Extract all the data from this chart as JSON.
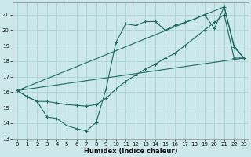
{
  "xlabel": "Humidex (Indice chaleur)",
  "bg_color": "#cce8ea",
  "grid_color": "#a8d4d7",
  "line_color": "#1d6b60",
  "xlim": [
    -0.5,
    23.5
  ],
  "ylim": [
    13,
    21.8
  ],
  "xticks": [
    0,
    1,
    2,
    3,
    4,
    5,
    6,
    7,
    8,
    9,
    10,
    11,
    12,
    13,
    14,
    15,
    16,
    17,
    18,
    19,
    20,
    21,
    22,
    23
  ],
  "yticks": [
    13,
    14,
    15,
    16,
    17,
    18,
    19,
    20,
    21
  ],
  "line1_x": [
    0,
    1,
    2,
    3,
    4,
    5,
    6,
    7,
    8,
    9,
    10,
    11,
    12,
    13,
    14,
    15,
    16,
    17,
    18,
    19,
    20,
    21,
    22,
    23
  ],
  "line1_y": [
    16.1,
    15.7,
    15.4,
    14.4,
    14.3,
    13.85,
    13.65,
    13.5,
    14.05,
    16.2,
    19.2,
    20.4,
    20.3,
    20.55,
    20.55,
    20.0,
    20.3,
    20.5,
    20.7,
    21.0,
    20.1,
    21.5,
    18.9,
    18.2
  ],
  "line2_x": [
    0,
    1,
    2,
    3,
    4,
    5,
    6,
    7,
    8,
    9,
    10,
    11,
    12,
    13,
    14,
    15,
    16,
    17,
    18,
    19,
    20,
    21,
    22,
    23
  ],
  "line2_y": [
    16.1,
    15.7,
    15.4,
    15.4,
    15.3,
    15.2,
    15.15,
    15.1,
    15.2,
    15.6,
    16.2,
    16.7,
    17.1,
    17.5,
    17.8,
    18.2,
    18.5,
    19.0,
    19.5,
    20.0,
    20.5,
    21.0,
    18.2,
    18.2
  ],
  "line3_x": [
    0,
    23
  ],
  "line3_y": [
    16.1,
    18.2
  ],
  "line4_x": [
    0,
    21,
    22,
    23
  ],
  "line4_y": [
    16.1,
    21.5,
    19.0,
    18.2
  ]
}
